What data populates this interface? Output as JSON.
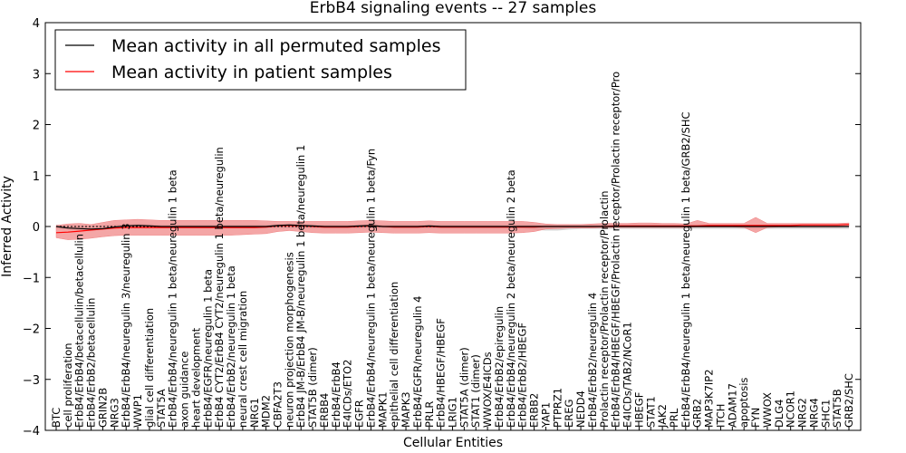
{
  "chart_data": {
    "type": "line",
    "title": "ErbB4 signaling events -- 27 samples",
    "xlabel": "Cellular Entities",
    "ylabel": "Inferred Activity",
    "ylim": [
      -4,
      4
    ],
    "yticks": [
      "−4",
      "−3",
      "−2",
      "−1",
      "0",
      "1",
      "2",
      "3",
      "4"
    ],
    "grid": false,
    "legend_position": "top-left",
    "colors": {
      "permuted": "#000000",
      "patient": "#ff0000",
      "patient_band": "#f08080",
      "permuted_band": "#c8c8c8"
    },
    "categories": [
      "BTC",
      "cell proliferation",
      "ErbB4/ErbB4/betacellulin/betacellulin",
      "ErbB4/ErbB2/betacellulin",
      "GRIN2B",
      "NRG3",
      "ErbB4/ErbB4/neuregulin 3/neuregulin 3",
      "WWP1",
      "glial cell differentiation",
      "STAT5A",
      "ErbB4/ErbB4/neuregulin 1 beta/neuregulin 1 beta",
      "axon guidance",
      "heart development",
      "ErbB4/EGFR/neuregulin 1 beta",
      "ErbB4 CYT2/ErbB4 CYT2/neuregulin 1 beta/neuregulin",
      "ErbB4/ErbB2/neuregulin 1 beta",
      "neural crest cell migration",
      "NRG1",
      "MDM2",
      "CBFA2T3",
      "neuron projection morphogenesis",
      "ErbB4 JM-B/ErbB4 JM-B/neuregulin 1 beta/neuregulin 1",
      "STAT5B (dimer)",
      "ERBB4",
      "ErbB4/ErbB4",
      "E4ICDs/ETO2",
      "EGFR",
      "ErbB4/ErbB4/neuregulin 1 beta/neuregulin 1 beta/Fyn",
      "MAPK1",
      "epithelial cell differentiation",
      "MAPK3",
      "ErbB4/EGFR/neuregulin 4",
      "PRLR",
      "ErbB4/HBEGF/HBEGF",
      "LRIG1",
      "STAT5A (dimer)",
      "STAT1 (dimer)",
      "WWOX/E4ICDs",
      "ErbB4/ErbB2/epiregulin",
      "ErbB4/ErbB4/neuregulin 2 beta/neuregulin 2 beta",
      "ErbB4/ErbB2/HBEGF",
      "ERBB2",
      "YAP1",
      "PTPRZ1",
      "EREG",
      "NEDD4",
      "ErbB4/ErbB2/neuregulin 4",
      "Prolactin receptor/Prolactin receptor/Prolactin",
      "ErbB4/ErbB4/HBEGF/HBEGF/Prolactin receptor/Prolactin receptor/Pro",
      "E4ICDs/TAB2/NCoR1",
      "HBEGF",
      "STAT1",
      "JAK2",
      "PRL",
      "ErbB4/ErbB4/neuregulin 1 beta/neuregulin 1 beta/GRB2/SHC",
      "GRB2",
      "MAP3K7IP2",
      "ITCH",
      "ADAM17",
      "apoptosis",
      "FYN",
      "WWOX",
      "DLG4",
      "NCOR1",
      "NRG2",
      "NRG4",
      "SHC1",
      "STAT5B",
      "GRB2/SHC"
    ],
    "series": [
      {
        "name": "Mean activity in all permuted samples",
        "values": [
          0.0,
          -0.03,
          -0.04,
          -0.05,
          -0.04,
          -0.01,
          0.01,
          0.02,
          0.01,
          0.0,
          0.0,
          0.0,
          0.0,
          0.0,
          0.0,
          0.0,
          0.0,
          0.0,
          0.0,
          0.02,
          0.03,
          0.02,
          0.01,
          0.0,
          0.0,
          0.0,
          0.01,
          0.02,
          0.0,
          0.0,
          0.0,
          0.0,
          0.01,
          0.0,
          0.0,
          0.0,
          0.0,
          0.0,
          0.0,
          0.0,
          0.0,
          0.0,
          0.0,
          0.0,
          0.0,
          0.0,
          0.0,
          0.0,
          0.0,
          0.0,
          0.0,
          0.0,
          0.0,
          0.0,
          0.0,
          0.0,
          0.0,
          0.0,
          0.0,
          0.0,
          0.0,
          0.0,
          0.0,
          0.0,
          0.0,
          0.0,
          0.0,
          0.0,
          0.0
        ]
      },
      {
        "name": "Mean activity in patient samples",
        "values": [
          -0.12,
          -0.11,
          -0.09,
          -0.07,
          -0.05,
          -0.03,
          -0.02,
          -0.02,
          -0.02,
          -0.02,
          -0.02,
          -0.02,
          -0.02,
          -0.02,
          -0.02,
          -0.02,
          -0.02,
          -0.02,
          -0.01,
          0.01,
          0.02,
          0.01,
          0.0,
          -0.01,
          -0.01,
          -0.01,
          0.0,
          0.01,
          0.0,
          -0.01,
          -0.01,
          -0.01,
          0.0,
          -0.01,
          -0.01,
          -0.01,
          -0.01,
          -0.01,
          -0.01,
          -0.01,
          -0.01,
          -0.01,
          0.0,
          0.0,
          0.0,
          0.0,
          0.0,
          0.0,
          0.01,
          0.01,
          0.01,
          0.01,
          0.01,
          0.01,
          0.01,
          0.01,
          0.02,
          0.02,
          0.02,
          0.02,
          0.02,
          0.02,
          0.02,
          0.02,
          0.03,
          0.03,
          0.03,
          0.03,
          0.04
        ]
      }
    ],
    "patient_band": {
      "lower": [
        -0.22,
        -0.26,
        -0.25,
        -0.23,
        -0.2,
        -0.18,
        -0.17,
        -0.17,
        -0.17,
        -0.17,
        -0.17,
        -0.17,
        -0.17,
        -0.17,
        -0.17,
        -0.17,
        -0.16,
        -0.15,
        -0.14,
        -0.1,
        -0.08,
        -0.1,
        -0.12,
        -0.13,
        -0.13,
        -0.13,
        -0.12,
        -0.11,
        -0.12,
        -0.13,
        -0.13,
        -0.13,
        -0.12,
        -0.13,
        -0.13,
        -0.13,
        -0.13,
        -0.13,
        -0.13,
        -0.13,
        -0.12,
        -0.1,
        -0.05,
        -0.04,
        -0.03,
        -0.03,
        -0.03,
        -0.02,
        -0.02,
        -0.02,
        -0.02,
        -0.02,
        -0.02,
        -0.02,
        -0.02,
        -0.01,
        -0.01,
        -0.01,
        -0.01,
        -0.02,
        -0.12,
        -0.02,
        -0.01,
        -0.01,
        -0.01,
        -0.01,
        -0.01,
        -0.01,
        0.0
      ],
      "upper": [
        0.02,
        0.05,
        0.06,
        0.04,
        0.08,
        0.12,
        0.13,
        0.14,
        0.13,
        0.12,
        0.12,
        0.12,
        0.12,
        0.12,
        0.12,
        0.12,
        0.12,
        0.12,
        0.11,
        0.1,
        0.1,
        0.1,
        0.1,
        0.1,
        0.1,
        0.1,
        0.11,
        0.12,
        0.11,
        0.1,
        0.1,
        0.1,
        0.11,
        0.1,
        0.1,
        0.1,
        0.1,
        0.1,
        0.1,
        0.1,
        0.1,
        0.08,
        0.05,
        0.04,
        0.04,
        0.04,
        0.05,
        0.06,
        0.06,
        0.06,
        0.07,
        0.07,
        0.06,
        0.06,
        0.05,
        0.12,
        0.06,
        0.06,
        0.06,
        0.06,
        0.18,
        0.06,
        0.06,
        0.06,
        0.06,
        0.06,
        0.06,
        0.06,
        0.07
      ]
    },
    "permuted_band": {
      "lower": [
        -0.05,
        -0.06,
        -0.07,
        -0.08,
        -0.07,
        -0.05,
        -0.04,
        -0.04,
        -0.04,
        -0.04,
        -0.04,
        -0.04,
        -0.04,
        -0.04,
        -0.04,
        -0.04,
        -0.04,
        -0.04,
        -0.04,
        -0.03,
        -0.03,
        -0.03,
        -0.04,
        -0.04,
        -0.04,
        -0.04,
        -0.04,
        -0.03,
        -0.04,
        -0.04,
        -0.04,
        -0.04,
        -0.04,
        -0.04,
        -0.04,
        -0.04,
        -0.04,
        -0.04,
        -0.04,
        -0.04,
        -0.04,
        -0.06,
        -0.08,
        -0.08,
        -0.06,
        -0.05,
        -0.05,
        -0.05,
        -0.05,
        -0.05,
        -0.05,
        -0.05,
        -0.05,
        -0.05,
        -0.05,
        -0.05,
        -0.05,
        -0.05,
        -0.05,
        -0.05,
        -0.05,
        -0.05,
        -0.05,
        -0.05,
        -0.05,
        -0.05,
        -0.05,
        -0.05,
        -0.05
      ],
      "upper": [
        0.04,
        0.02,
        0.02,
        0.01,
        0.02,
        0.04,
        0.05,
        0.06,
        0.05,
        0.04,
        0.04,
        0.04,
        0.04,
        0.04,
        0.04,
        0.04,
        0.04,
        0.04,
        0.04,
        0.05,
        0.06,
        0.05,
        0.04,
        0.04,
        0.04,
        0.04,
        0.04,
        0.05,
        0.04,
        0.04,
        0.04,
        0.04,
        0.04,
        0.04,
        0.04,
        0.04,
        0.04,
        0.04,
        0.04,
        0.04,
        0.04,
        0.04,
        0.04,
        0.04,
        0.04,
        0.04,
        0.04,
        0.04,
        0.04,
        0.04,
        0.04,
        0.04,
        0.04,
        0.04,
        0.04,
        0.04,
        0.04,
        0.04,
        0.04,
        0.04,
        0.04,
        0.04,
        0.04,
        0.04,
        0.04,
        0.04,
        0.04,
        0.04,
        0.04
      ]
    }
  }
}
